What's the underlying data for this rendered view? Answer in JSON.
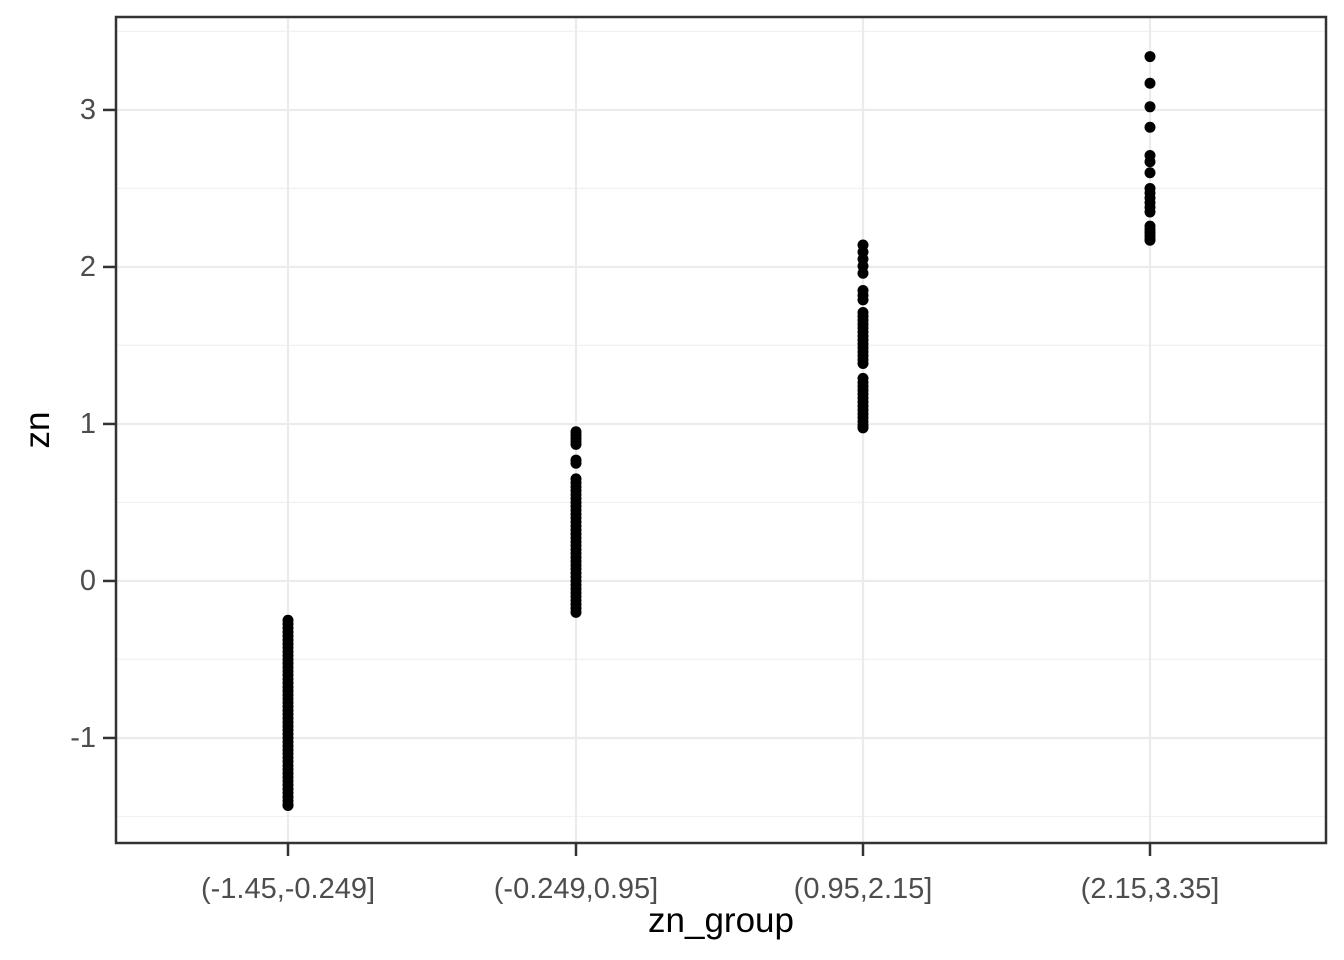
{
  "figure": {
    "kind": "ggplot-style strip plot",
    "background": "#ffffff"
  },
  "colors": {
    "point": "#000000",
    "grid_major": "#ebebeb",
    "grid_minor": "#f1f1f1",
    "panel_border": "#333333",
    "tick_mark": "#333333",
    "tick_label": "#4d4d4d",
    "axis_title": "#000000",
    "panel_background": "#ffffff"
  },
  "chart_data": {
    "type": "scatter",
    "title": "",
    "xlabel": "zn_group",
    "ylabel": "zn",
    "legend": "none",
    "grid": "horizontal major+minor, vertical major at each category",
    "categories": [
      "(-1.45,-0.249]",
      "(-0.249,0.95]",
      "(0.95,2.15]",
      "(2.15,3.35]"
    ],
    "y_axis": {
      "ylim": [
        -1.669,
        3.592
      ],
      "ticks": [
        3,
        2,
        1,
        0,
        -1
      ],
      "tick_labels": [
        "3",
        "2",
        "1",
        "0",
        "-1"
      ],
      "minor_gridlines": [
        3.5,
        2.5,
        1.5,
        0.5,
        -0.5,
        -1.5
      ]
    },
    "groups": [
      {
        "label": "(-1.45,-0.249]",
        "values": [
          -0.25,
          -0.275,
          -0.3,
          -0.325,
          -0.35,
          -0.375,
          -0.4,
          -0.425,
          -0.45,
          -0.475,
          -0.5,
          -0.525,
          -0.55,
          -0.575,
          -0.6,
          -0.625,
          -0.65,
          -0.675,
          -0.7,
          -0.725,
          -0.75,
          -0.775,
          -0.8,
          -0.825,
          -0.85,
          -0.875,
          -0.9,
          -0.925,
          -0.95,
          -0.975,
          -1.0,
          -1.025,
          -1.05,
          -1.075,
          -1.1,
          -1.125,
          -1.15,
          -1.175,
          -1.2,
          -1.225,
          -1.25,
          -1.275,
          -1.3,
          -1.325,
          -1.35,
          -1.375,
          -1.4,
          -1.425,
          -1.43
        ]
      },
      {
        "label": "(-0.249,0.95]",
        "values": [
          0.95,
          0.93,
          0.91,
          0.89,
          0.87,
          0.77,
          0.75,
          0.65,
          0.625,
          0.6,
          0.575,
          0.55,
          0.525,
          0.5,
          0.475,
          0.45,
          0.425,
          0.4,
          0.375,
          0.35,
          0.325,
          0.3,
          0.275,
          0.25,
          0.225,
          0.2,
          0.175,
          0.15,
          0.125,
          0.1,
          0.075,
          0.05,
          0.025,
          0.0,
          -0.025,
          -0.05,
          -0.075,
          -0.1,
          -0.125,
          -0.15,
          -0.175,
          -0.2
        ]
      },
      {
        "label": "(0.95,2.15]",
        "values": [
          2.14,
          2.095,
          2.05,
          2.005,
          1.96,
          1.85,
          1.82,
          1.79,
          1.71,
          1.685,
          1.66,
          1.635,
          1.61,
          1.585,
          1.56,
          1.535,
          1.51,
          1.485,
          1.46,
          1.435,
          1.41,
          1.385,
          1.29,
          1.265,
          1.24,
          1.215,
          1.19,
          1.165,
          1.14,
          1.115,
          1.09,
          1.065,
          1.04,
          1.015,
          0.99,
          0.975
        ]
      },
      {
        "label": "(2.15,3.35]",
        "values": [
          3.34,
          3.17,
          3.02,
          2.89,
          2.71,
          2.67,
          2.6,
          2.5,
          2.47,
          2.44,
          2.41,
          2.38,
          2.35,
          2.26,
          2.24,
          2.22,
          2.2,
          2.18,
          2.17
        ]
      }
    ]
  }
}
